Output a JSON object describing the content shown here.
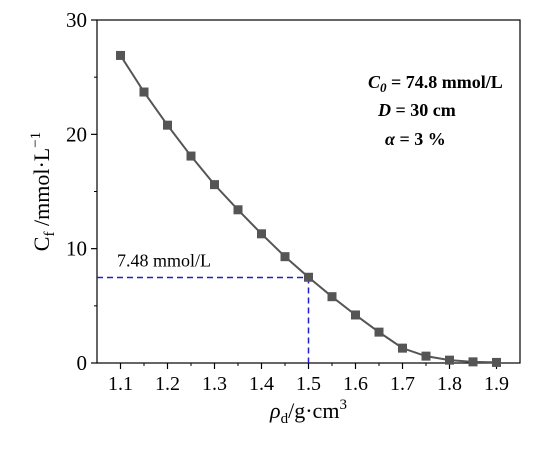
{
  "chart_data": {
    "type": "line",
    "title": "",
    "xlabel": {
      "main": "ρ",
      "sub": "d",
      "rest": "/g·cm",
      "sup": "3"
    },
    "ylabel": {
      "main": "C",
      "sub": "f",
      "rest": " /mmol·L",
      "sup": "−1"
    },
    "xlim": [
      1.05,
      1.95
    ],
    "ylim": [
      0,
      30
    ],
    "xticks": [
      "1.1",
      "1.2",
      "1.3",
      "1.4",
      "1.5",
      "1.6",
      "1.7",
      "1.8",
      "1.9"
    ],
    "yticks": [
      "0",
      "10",
      "20",
      "30"
    ],
    "grid": false,
    "series": [
      {
        "x": [
          1.1,
          1.15,
          1.2,
          1.25,
          1.3,
          1.35,
          1.4,
          1.45,
          1.5,
          1.55,
          1.6,
          1.65,
          1.7,
          1.75,
          1.8,
          1.85,
          1.9
        ],
        "y": [
          26.9,
          23.7,
          20.8,
          18.1,
          15.6,
          13.4,
          11.3,
          9.3,
          7.5,
          5.8,
          4.2,
          2.7,
          1.3,
          0.6,
          0.25,
          0.1,
          0.05
        ],
        "color": "#555555",
        "marker": "square"
      }
    ],
    "reference": {
      "x": 1.5,
      "y": 7.48,
      "label": "7.48 mmol/L",
      "color": "#1f1fcc",
      "style": "dashed"
    },
    "annotations": [
      {
        "var": "C",
        "sub": "0",
        "rest": " = 74.8 mmol/L"
      },
      {
        "var": "D",
        "sub": "",
        "rest": " = 30 cm"
      },
      {
        "var": "α",
        "sub": "",
        "rest": " = 3 %"
      }
    ]
  }
}
